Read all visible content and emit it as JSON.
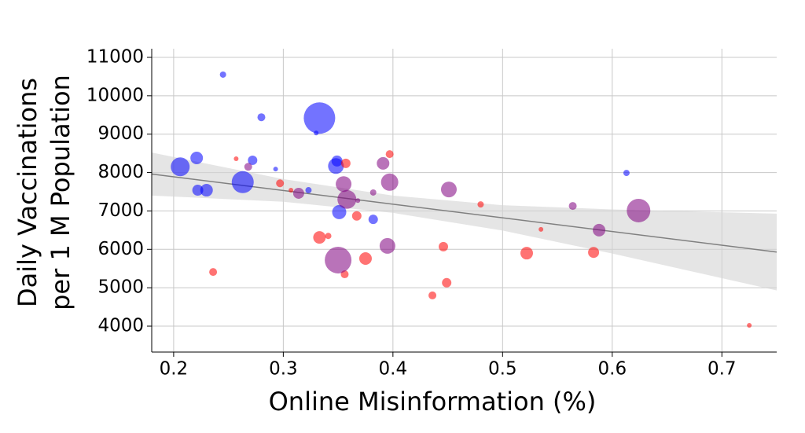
{
  "chart_data": {
    "type": "scatter",
    "xlabel": "Online Misinformation (%)",
    "ylabel": [
      "Daily Vaccinations",
      "per 1 M Population"
    ],
    "xlim": [
      0.18,
      0.75
    ],
    "ylim": [
      3325,
      11225
    ],
    "xticks": [
      0.2,
      0.3,
      0.4,
      0.5,
      0.6,
      0.7
    ],
    "yticks": [
      4000,
      5000,
      6000,
      7000,
      8000,
      9000,
      10000,
      11000
    ],
    "grid": true,
    "series": [
      {
        "color": "#0000ff",
        "x": [
          0.245,
          0.28,
          0.333,
          0.33,
          0.206,
          0.221,
          0.272,
          0.293,
          0.349,
          0.348,
          0.222,
          0.23,
          0.263,
          0.323,
          0.351,
          0.382,
          0.613
        ],
        "values": [
          10550,
          9440,
          9420,
          9030,
          8150,
          8380,
          8320,
          8090,
          8300,
          8170,
          7540,
          7540,
          7750,
          7540,
          6970,
          6780,
          7990
        ],
        "sizes": [
          4,
          5,
          20,
          3,
          12,
          8,
          6,
          3,
          7,
          10,
          7,
          8,
          14,
          4,
          9,
          6,
          4
        ]
      },
      {
        "color": "#ff0000",
        "x": [
          0.257,
          0.297,
          0.307,
          0.357,
          0.397,
          0.48,
          0.535,
          0.333,
          0.341,
          0.367,
          0.236,
          0.356,
          0.375,
          0.446,
          0.522,
          0.583,
          0.449,
          0.436,
          0.725
        ],
        "values": [
          8360,
          7720,
          7540,
          8240,
          8480,
          7170,
          6520,
          6310,
          6350,
          6870,
          5410,
          5350,
          5760,
          6070,
          5900,
          5920,
          5130,
          4800,
          4020
        ],
        "sizes": [
          3,
          5,
          3,
          6,
          5,
          4,
          3,
          8,
          4,
          6,
          5,
          5,
          8,
          6,
          8,
          7,
          6,
          5,
          3
        ]
      },
      {
        "color": "#800080",
        "x": [
          0.268,
          0.314,
          0.355,
          0.358,
          0.368,
          0.382,
          0.391,
          0.397,
          0.451,
          0.35,
          0.395,
          0.564,
          0.588,
          0.624
        ],
        "values": [
          8150,
          7460,
          7700,
          7300,
          7270,
          7480,
          8240,
          7750,
          7560,
          5720,
          6090,
          7130,
          6500,
          7010
        ],
        "sizes": [
          5,
          7,
          10,
          12,
          3,
          4,
          8,
          11,
          10,
          17,
          10,
          5,
          8,
          15
        ]
      }
    ],
    "fit": {
      "color": "#808080",
      "x": [
        0.18,
        0.75
      ],
      "values": [
        7960,
        5930
      ]
    },
    "band": {
      "color": "#d3d3d3",
      "x": [
        0.18,
        0.3,
        0.4,
        0.5,
        0.6,
        0.75
      ],
      "lower": [
        7400,
        7240,
        6950,
        6490,
        5890,
        4930
      ],
      "upper": [
        8520,
        7830,
        7400,
        7150,
        7040,
        6930
      ]
    }
  }
}
